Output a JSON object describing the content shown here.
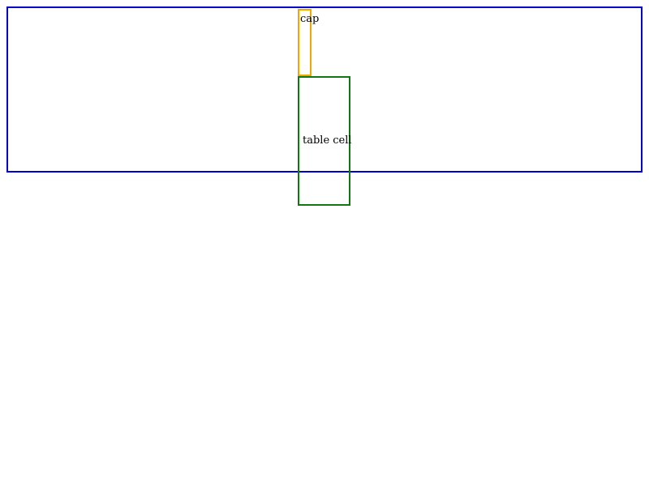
{
  "caption": {
    "text": "cap"
  },
  "cell": {
    "text": "table cell"
  },
  "colors": {
    "outer_border": "#0000cc",
    "caption_border": "#f0a800",
    "cell_border": "#117711"
  }
}
